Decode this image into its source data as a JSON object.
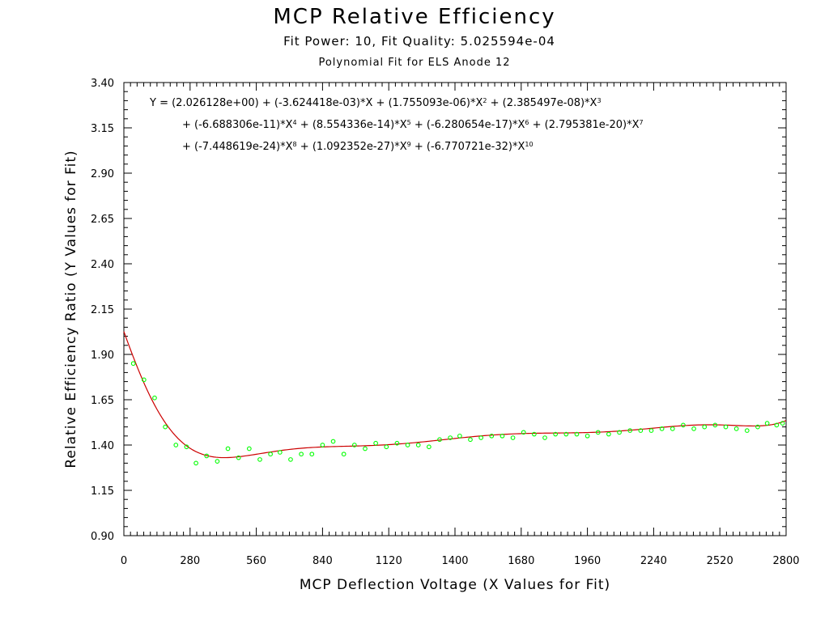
{
  "chart_data": {
    "type": "scatter",
    "title": "MCP Relative Efficiency",
    "subtitle": "Fit Power: 10, Fit Quality: 5.025594e-04",
    "subtitle2": "Polynomial Fit for ELS Anode 12",
    "xlabel": "MCP Deflection Voltage (X Values for Fit)",
    "ylabel": "Relative Efficiency Ratio (Y Values for Fit)",
    "xlim": [
      0,
      2800
    ],
    "ylim": [
      0.9,
      3.4
    ],
    "x_ticks": [
      "0",
      "280",
      "560",
      "840",
      "1120",
      "1400",
      "1680",
      "1960",
      "2240",
      "2520",
      "2800"
    ],
    "y_ticks": [
      "0.90",
      "1.15",
      "1.40",
      "1.65",
      "1.90",
      "2.15",
      "2.40",
      "2.65",
      "2.90",
      "3.15",
      "3.40"
    ],
    "grid": false,
    "point_color": "#00ff00",
    "fit_color": "#cc0000",
    "fit_coefficients": [
      2.026128,
      -0.003624418,
      1.755093e-06,
      2.385497e-08,
      -6.688306e-11,
      8.554336e-14,
      -6.280654e-17,
      2.795381e-20,
      -7.448619e-24,
      1.092352e-27,
      -6.770721e-32
    ],
    "equation": {
      "line1_prefix": "Y = ",
      "terms": [
        "(2.026128e+00)",
        "(-3.624418e-03)*X",
        "(1.755093e-06)*X",
        "(2.385497e-08)*X",
        "(-6.688306e-11)*X",
        "(8.554336e-14)*X",
        "(-6.280654e-17)*X",
        "(2.795381e-20)*X",
        "(-7.448619e-24)*X",
        "(1.092352e-27)*X",
        "(-6.770721e-32)*X"
      ],
      "exponents": [
        "",
        "",
        "2",
        "3",
        "4",
        "5",
        "6",
        "7",
        "8",
        "9",
        "10"
      ],
      "plus": " + "
    },
    "points": [
      [
        40,
        1.85
      ],
      [
        85,
        1.76
      ],
      [
        130,
        1.66
      ],
      [
        175,
        1.5
      ],
      [
        220,
        1.4
      ],
      [
        265,
        1.39
      ],
      [
        305,
        1.3
      ],
      [
        350,
        1.34
      ],
      [
        395,
        1.31
      ],
      [
        440,
        1.38
      ],
      [
        485,
        1.33
      ],
      [
        530,
        1.38
      ],
      [
        575,
        1.32
      ],
      [
        620,
        1.35
      ],
      [
        660,
        1.36
      ],
      [
        705,
        1.32
      ],
      [
        750,
        1.35
      ],
      [
        795,
        1.35
      ],
      [
        840,
        1.4
      ],
      [
        885,
        1.42
      ],
      [
        930,
        1.35
      ],
      [
        975,
        1.4
      ],
      [
        1020,
        1.38
      ],
      [
        1065,
        1.41
      ],
      [
        1110,
        1.39
      ],
      [
        1155,
        1.41
      ],
      [
        1200,
        1.4
      ],
      [
        1245,
        1.4
      ],
      [
        1290,
        1.39
      ],
      [
        1335,
        1.43
      ],
      [
        1380,
        1.44
      ],
      [
        1420,
        1.45
      ],
      [
        1465,
        1.43
      ],
      [
        1510,
        1.44
      ],
      [
        1555,
        1.45
      ],
      [
        1600,
        1.45
      ],
      [
        1645,
        1.44
      ],
      [
        1690,
        1.47
      ],
      [
        1735,
        1.46
      ],
      [
        1780,
        1.44
      ],
      [
        1825,
        1.46
      ],
      [
        1870,
        1.46
      ],
      [
        1915,
        1.46
      ],
      [
        1960,
        1.45
      ],
      [
        2005,
        1.47
      ],
      [
        2050,
        1.46
      ],
      [
        2095,
        1.47
      ],
      [
        2140,
        1.48
      ],
      [
        2185,
        1.48
      ],
      [
        2230,
        1.48
      ],
      [
        2275,
        1.49
      ],
      [
        2320,
        1.49
      ],
      [
        2365,
        1.51
      ],
      [
        2410,
        1.49
      ],
      [
        2455,
        1.5
      ],
      [
        2500,
        1.51
      ],
      [
        2545,
        1.5
      ],
      [
        2590,
        1.49
      ],
      [
        2635,
        1.48
      ],
      [
        2680,
        1.5
      ],
      [
        2720,
        1.52
      ],
      [
        2760,
        1.51
      ],
      [
        2785,
        1.52
      ]
    ]
  }
}
